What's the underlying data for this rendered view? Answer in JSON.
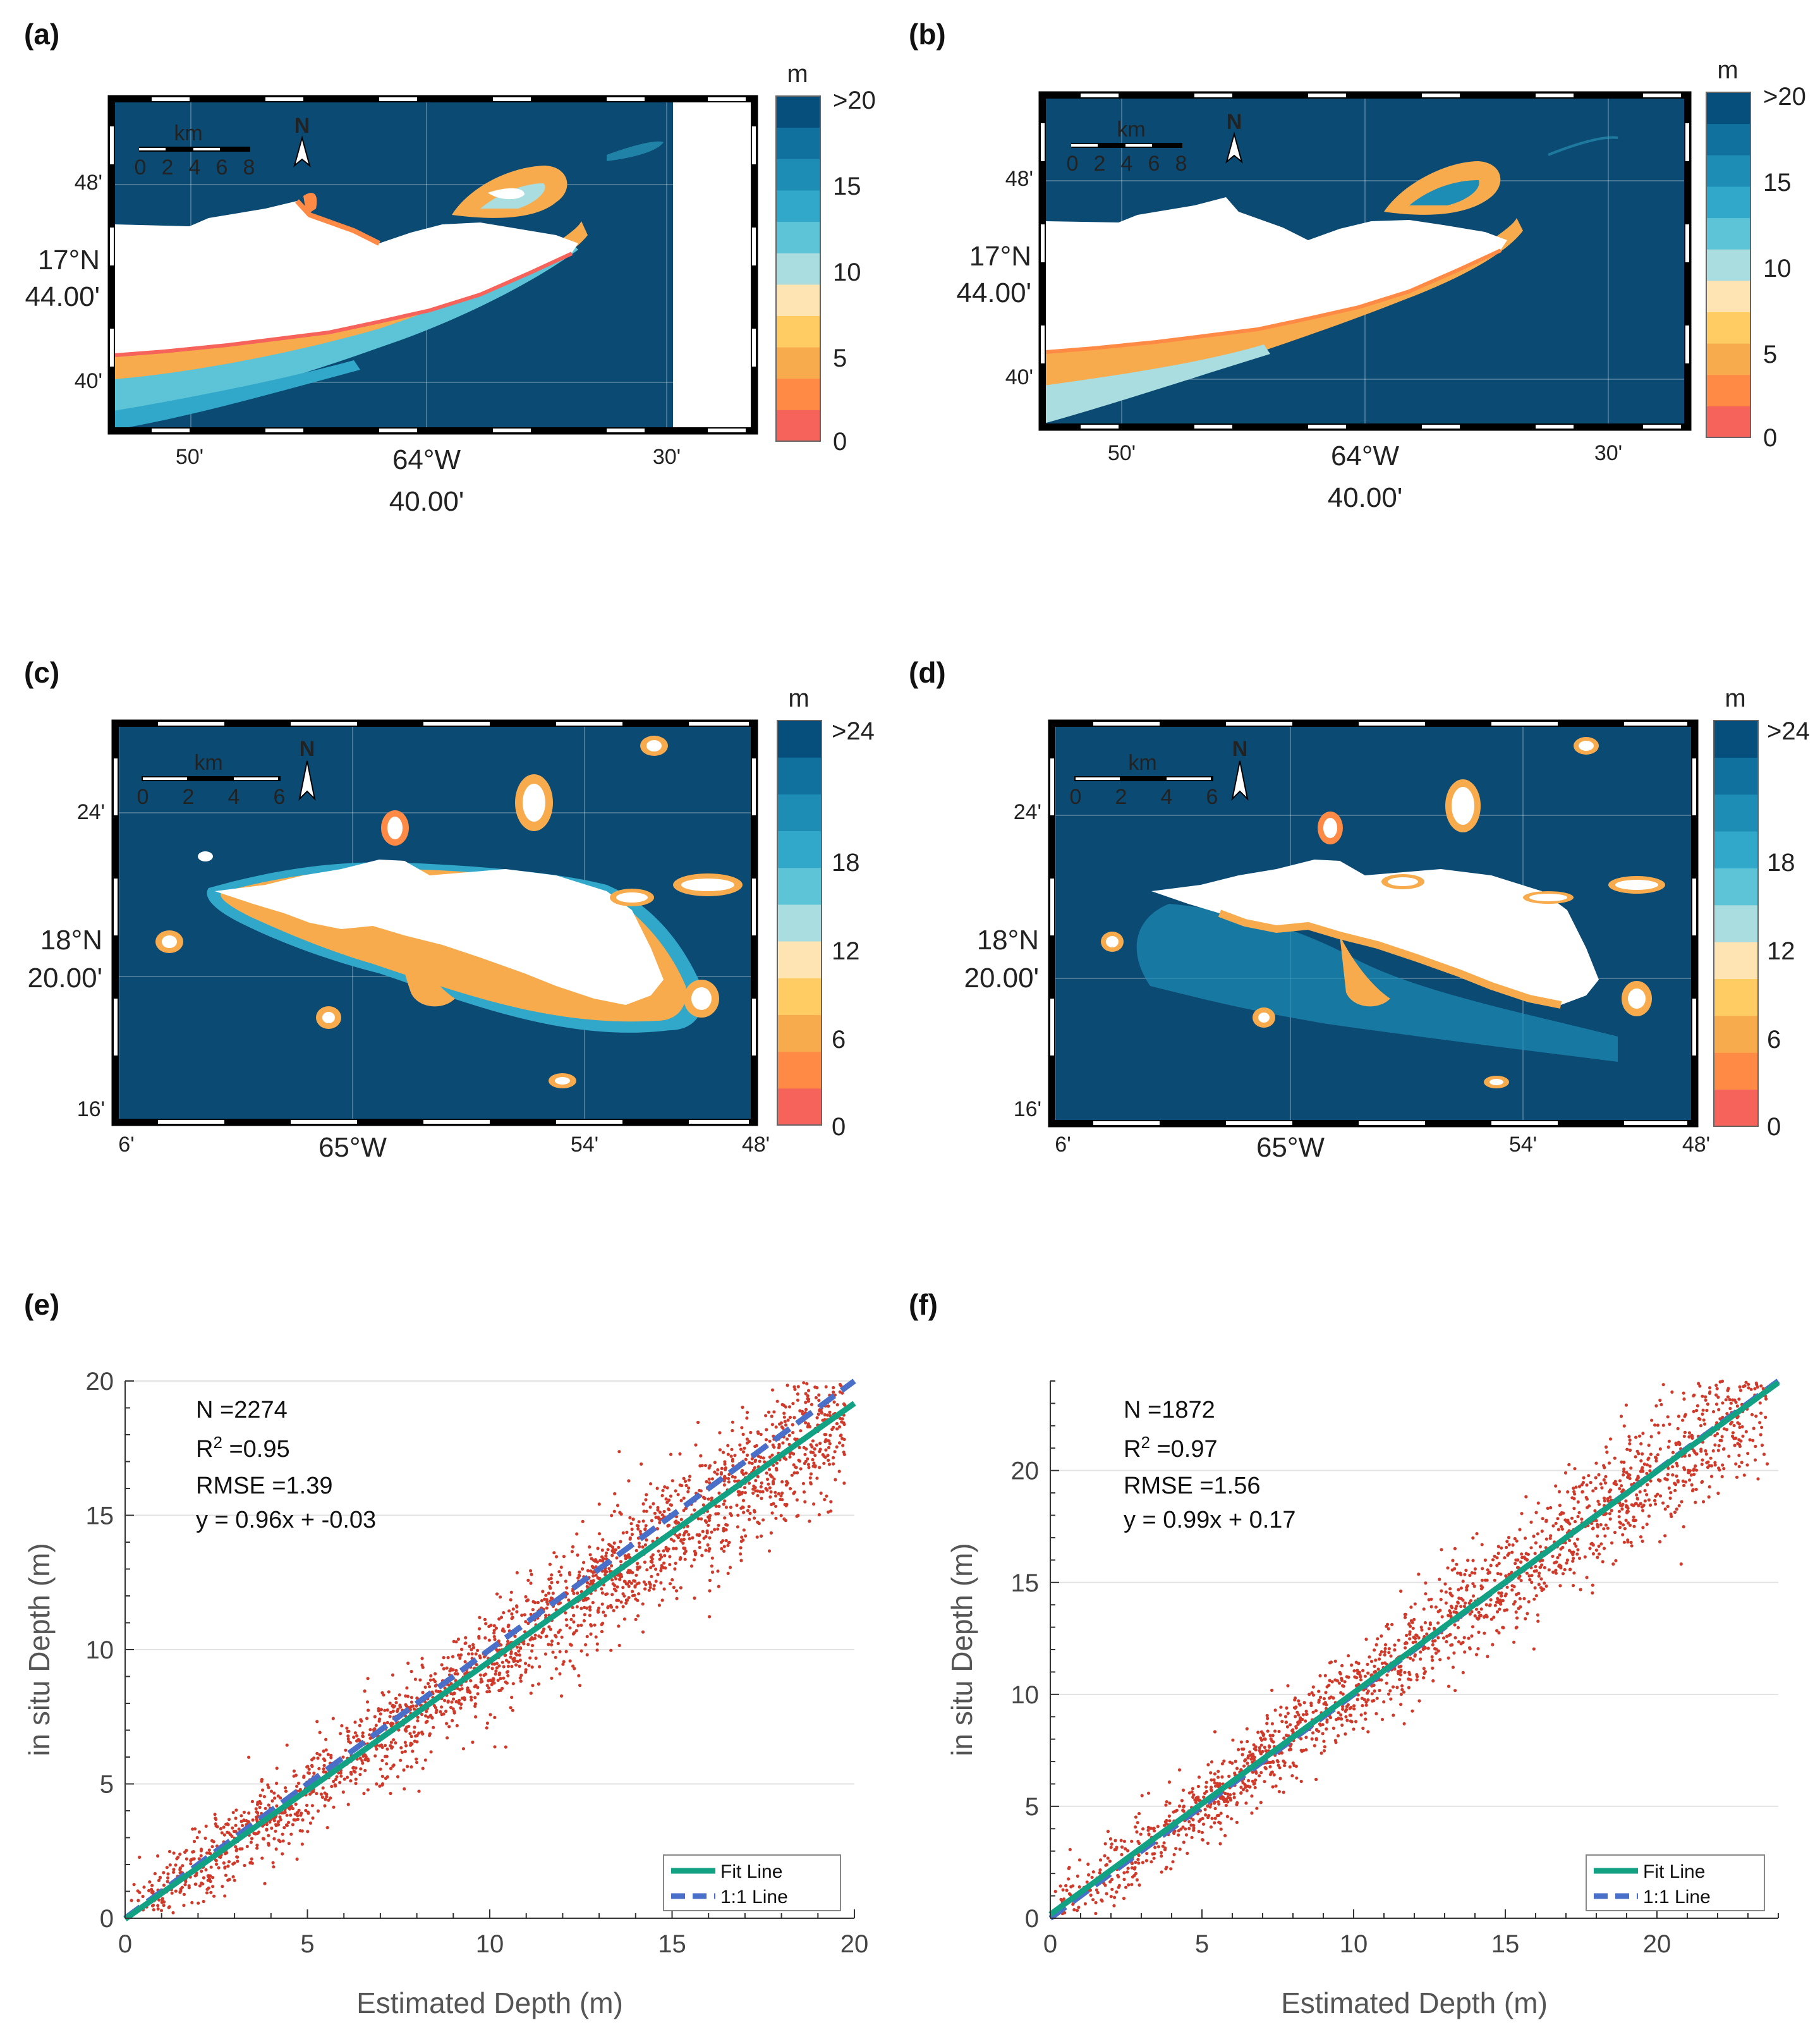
{
  "colors": {
    "ocean": "#0b4a73",
    "land": "#ffffff",
    "fit": "#13a183",
    "one_to_one": "#4a6fc8",
    "points": "#d03a2a",
    "scale": [
      "#f5635a",
      "#ff8a45",
      "#f8ab4c",
      "#ffcc64",
      "#fde4b2",
      "#a9dddf",
      "#5cc4d6",
      "#31a8ca",
      "#1d8db6",
      "#10719e",
      "#064e7b"
    ]
  },
  "maps": [
    {
      "id": "a",
      "label": "(a)",
      "unit": "m",
      "cb_ticks": [
        ">20",
        "15",
        "10",
        "5",
        "0"
      ],
      "lat_ticks": [
        "48'",
        "40'"
      ],
      "lat_main": [
        "17°N",
        "44.00'"
      ],
      "lon_ticks": [
        "50'",
        "30'"
      ],
      "lon_main": [
        "64°W",
        "40.00'"
      ],
      "scalebar": {
        "title": "km",
        "ticks": [
          "0",
          "2",
          "4",
          "6",
          "8"
        ]
      },
      "north": "N"
    },
    {
      "id": "b",
      "label": "(b)",
      "unit": "m",
      "cb_ticks": [
        ">20",
        "15",
        "10",
        "5",
        "0"
      ],
      "lat_ticks": [
        "48'",
        "40'"
      ],
      "lat_main": [
        "17°N",
        "44.00'"
      ],
      "lon_ticks": [
        "50'",
        "30'"
      ],
      "lon_main": [
        "64°W",
        "40.00'"
      ],
      "scalebar": {
        "title": "km",
        "ticks": [
          "0",
          "2",
          "4",
          "6",
          "8"
        ]
      },
      "north": "N"
    },
    {
      "id": "c",
      "label": "(c)",
      "unit": "m",
      "cb_ticks": [
        ">24",
        "18",
        "12",
        "6",
        "0"
      ],
      "lat_ticks": [
        "24'",
        "16'"
      ],
      "lat_main": [
        "18°N",
        "20.00'"
      ],
      "lon_ticks": [
        "6'",
        "54'",
        "48'"
      ],
      "lon_main": [
        "65°W"
      ],
      "scalebar": {
        "title": "km",
        "ticks": [
          "0",
          "2",
          "4",
          "6"
        ]
      },
      "north": "N"
    },
    {
      "id": "d",
      "label": "(d)",
      "unit": "m",
      "cb_ticks": [
        ">24",
        "18",
        "12",
        "6",
        "0"
      ],
      "lat_ticks": [
        "24'",
        "16'"
      ],
      "lat_main": [
        "18°N",
        "20.00'"
      ],
      "lon_ticks": [
        "6'",
        "54'",
        "48'"
      ],
      "lon_main": [
        "65°W"
      ],
      "scalebar": {
        "title": "km",
        "ticks": [
          "0",
          "2",
          "4",
          "6"
        ]
      },
      "north": "N"
    }
  ],
  "chart_data": [
    {
      "type": "scatter",
      "panel": "(e)",
      "xlabel": "Estimated Depth (m)",
      "ylabel": "in situ Depth (m)",
      "xlim": [
        0,
        20
      ],
      "ylim": [
        0,
        20
      ],
      "xticks": [
        0,
        5,
        10,
        15,
        20
      ],
      "yticks": [
        0,
        5,
        10,
        15,
        20
      ],
      "stats": {
        "n": "N =2274",
        "r2_label": "R",
        "r2_sup": "2",
        "r2_value": " =0.95",
        "rmse": "RMSE =1.39",
        "equation": "y = 0.96x + -0.03"
      },
      "fit": {
        "slope": 0.96,
        "intercept": -0.03
      },
      "legend": {
        "fit": "Fit Line",
        "one_to_one": "1:1 Line"
      },
      "n_points": 2274,
      "sigma": 1.39
    },
    {
      "type": "scatter",
      "panel": "(f)",
      "xlabel": "Estimated Depth (m)",
      "ylabel": "in situ Depth (m)",
      "xlim": [
        0,
        24
      ],
      "ylim": [
        0,
        24
      ],
      "xticks": [
        0,
        5,
        10,
        15,
        20
      ],
      "yticks": [
        0,
        5,
        10,
        15,
        20
      ],
      "stats": {
        "n": "N =1872",
        "r2_label": "R",
        "r2_sup": "2",
        "r2_value": " =0.97",
        "rmse": "RMSE =1.56",
        "equation": "y = 0.99x + 0.17"
      },
      "fit": {
        "slope": 0.99,
        "intercept": 0.17
      },
      "legend": {
        "fit": "Fit Line",
        "one_to_one": "1:1 Line"
      },
      "n_points": 1872,
      "sigma": 1.56
    }
  ]
}
